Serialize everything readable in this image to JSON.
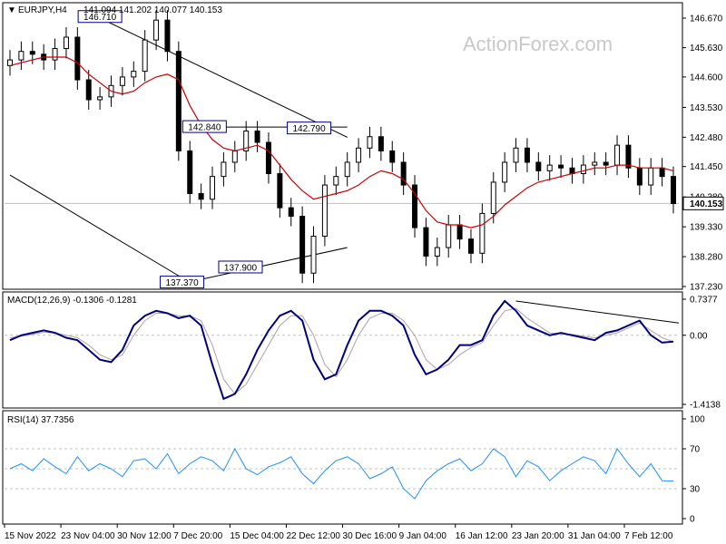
{
  "header": {
    "symbol": "EURJPY,H4",
    "ohlc": "141.094 141.202 140.077 140.153",
    "watermark": "ActionForex.com"
  },
  "colors": {
    "bull": "#000000",
    "ma": "#cc0000",
    "macd_line": "#000080",
    "macd_signal": "#b0a0a0",
    "rsi_line": "#1e90ff"
  },
  "chart_data": [
    {
      "type": "candlestick",
      "panel": "price",
      "ylim": [
        137.23,
        146.67
      ],
      "y_ticks": [
        "146.670",
        "145.630",
        "144.600",
        "143.530",
        "142.480",
        "141.450",
        "140.380",
        "139.330",
        "138.280",
        "137.230"
      ],
      "current_price": "140.153",
      "annotations": [
        {
          "label": "146.710",
          "x": 8.0,
          "y": 146.71
        },
        {
          "label": "142.840",
          "x": 17.3,
          "y": 142.84
        },
        {
          "label": "142.790",
          "x": 26.6,
          "y": 142.79
        },
        {
          "label": "137.370",
          "x": 15.3,
          "y": 137.37
        },
        {
          "label": "137.900",
          "x": 20.5,
          "y": 137.9
        }
      ],
      "trendlines": [
        {
          "name": "upper-channel",
          "from": [
            7.8,
            146.71
          ],
          "to": [
            30.0,
            142.48
          ]
        },
        {
          "name": "lower-channel",
          "from": [
            0.0,
            141.15
          ],
          "to": [
            16.6,
            137.23
          ]
        },
        {
          "name": "resistance",
          "from": [
            16.0,
            142.84
          ],
          "to": [
            30.0,
            142.84
          ]
        },
        {
          "name": "support-rising",
          "from": [
            15.7,
            137.37
          ],
          "to": [
            30.0,
            138.6
          ]
        }
      ],
      "close": [
        145.2,
        145.5,
        145.4,
        145.2,
        145.6,
        146.0,
        144.5,
        143.8,
        143.9,
        144.3,
        144.6,
        144.8,
        145.9,
        146.6,
        145.5,
        142.0,
        140.5,
        140.3,
        141.1,
        141.6,
        142.0,
        142.7,
        142.3,
        141.2,
        140.0,
        139.7,
        137.7,
        139.0,
        140.8,
        141.1,
        141.6,
        142.1,
        142.5,
        142.0,
        141.6,
        140.8,
        139.3,
        138.3,
        138.6,
        139.4,
        138.9,
        138.4,
        139.8,
        140.9,
        141.6,
        142.1,
        141.6,
        141.3,
        141.5,
        141.4,
        141.2,
        141.5,
        141.6,
        141.5,
        142.2,
        141.4,
        140.8,
        141.4,
        141.1,
        140.15
      ],
      "ma": [
        145.0,
        145.1,
        145.2,
        145.3,
        145.3,
        145.3,
        145.1,
        144.7,
        144.4,
        144.1,
        144.0,
        144.1,
        144.4,
        144.6,
        144.7,
        144.5,
        143.6,
        142.9,
        142.4,
        142.1,
        142.0,
        142.1,
        142.2,
        142.0,
        141.5,
        141.0,
        140.6,
        140.3,
        140.4,
        140.5,
        140.6,
        140.8,
        141.1,
        141.3,
        141.2,
        141.0,
        140.5,
        139.9,
        139.5,
        139.4,
        139.4,
        139.3,
        139.4,
        139.7,
        140.1,
        140.4,
        140.7,
        140.9,
        141.0,
        141.1,
        141.2,
        141.3,
        141.4,
        141.4,
        141.5,
        141.5,
        141.4,
        141.4,
        141.4,
        141.3
      ],
      "x_tick_labels": [
        "15 Nov 2022",
        "23 Nov 04:00",
        "30 Nov 12:00",
        "7 Dec 20:00",
        "15 Dec 04:00",
        "22 Dec 12:00",
        "30 Dec 16:00",
        "9 Jan 04:00",
        "16 Jan 12:00",
        "23 Jan 20:00",
        "31 Jan 04:00",
        "7 Feb 12:00"
      ]
    },
    {
      "type": "line",
      "panel": "macd",
      "title": "MACD(12,26,9) -0.1306 -0.1281",
      "ylim": [
        -1.4138,
        0.7377
      ],
      "y_ticks": [
        "0.7377",
        "0.00",
        "-1.4138"
      ],
      "series": [
        {
          "name": "macd",
          "values": [
            -0.1,
            0.0,
            0.05,
            0.1,
            0.05,
            -0.05,
            -0.1,
            -0.3,
            -0.5,
            -0.55,
            -0.3,
            0.2,
            0.4,
            0.5,
            0.45,
            0.35,
            0.4,
            0.2,
            -0.6,
            -1.3,
            -1.2,
            -0.8,
            -0.3,
            0.1,
            0.4,
            0.5,
            0.3,
            -0.5,
            -0.9,
            -0.8,
            -0.2,
            0.3,
            0.5,
            0.5,
            0.4,
            0.2,
            -0.4,
            -0.8,
            -0.7,
            -0.5,
            -0.2,
            -0.2,
            -0.1,
            0.4,
            0.7,
            0.5,
            0.2,
            0.1,
            0.0,
            0.05,
            0.0,
            -0.05,
            -0.1,
            0.05,
            0.1,
            0.2,
            0.3,
            0.0,
            -0.15,
            -0.13
          ]
        },
        {
          "name": "signal",
          "values": [
            -0.05,
            -0.02,
            0.02,
            0.06,
            0.05,
            0.0,
            -0.05,
            -0.2,
            -0.4,
            -0.5,
            -0.4,
            0.0,
            0.3,
            0.45,
            0.45,
            0.4,
            0.4,
            0.3,
            -0.2,
            -0.9,
            -1.2,
            -1.0,
            -0.6,
            -0.2,
            0.2,
            0.4,
            0.4,
            0.0,
            -0.6,
            -0.85,
            -0.5,
            0.0,
            0.35,
            0.45,
            0.45,
            0.3,
            0.0,
            -0.5,
            -0.7,
            -0.6,
            -0.4,
            -0.25,
            -0.15,
            0.2,
            0.5,
            0.55,
            0.35,
            0.2,
            0.05,
            0.03,
            0.02,
            -0.02,
            -0.05,
            0.0,
            0.05,
            0.15,
            0.25,
            0.1,
            -0.05,
            -0.13
          ]
        }
      ],
      "trendline": {
        "from": [
          45.0,
          0.7
        ],
        "to": [
          60.0,
          0.25
        ]
      }
    },
    {
      "type": "line",
      "panel": "rsi",
      "title": "RSI(14) 37.7356",
      "ylim": [
        0,
        100
      ],
      "y_ticks": [
        "100",
        "70",
        "30",
        "0"
      ],
      "guides": [
        70,
        50,
        30
      ],
      "series": [
        {
          "name": "rsi",
          "values": [
            50,
            55,
            48,
            60,
            52,
            45,
            62,
            48,
            55,
            50,
            42,
            58,
            60,
            50,
            65,
            45,
            55,
            62,
            58,
            48,
            70,
            50,
            44,
            52,
            56,
            62,
            45,
            35,
            48,
            58,
            62,
            55,
            40,
            45,
            52,
            30,
            20,
            38,
            48,
            55,
            60,
            48,
            55,
            70,
            62,
            42,
            58,
            52,
            38,
            48,
            55,
            62,
            58,
            45,
            70,
            55,
            42,
            55,
            38,
            37.7
          ]
        }
      ]
    }
  ]
}
